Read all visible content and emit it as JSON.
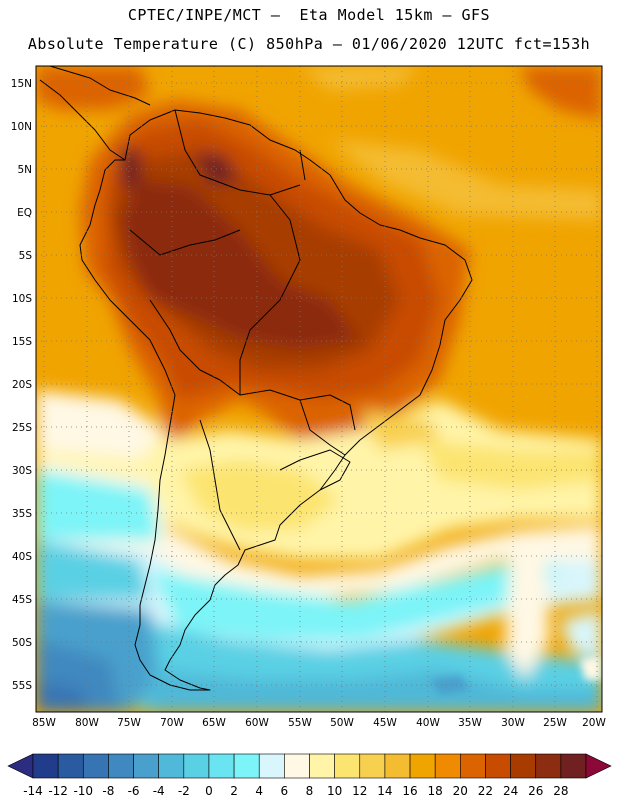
{
  "header": {
    "line1": "CPTEC/INPE/MCT –  Eta Model 15km – GFS",
    "line2": "Absolute Temperature (C) 850hPa – 01/06/2020 12UTC fct=153h"
  },
  "map": {
    "lat_labels": [
      "15N",
      "10N",
      "5N",
      "EQ",
      "5S",
      "10S",
      "15S",
      "20S",
      "25S",
      "30S",
      "35S",
      "40S",
      "45S",
      "50S",
      "55S"
    ],
    "lon_labels": [
      "85W",
      "80W",
      "75W",
      "70W",
      "65W",
      "60W",
      "55W",
      "50W",
      "45W",
      "40W",
      "35W",
      "30W",
      "25W",
      "20W"
    ]
  },
  "colorbar": {
    "labels": [
      "-14",
      "-12",
      "-10",
      "-8",
      "-6",
      "-4",
      "-2",
      "0",
      "2",
      "4",
      "6",
      "8",
      "10",
      "12",
      "14",
      "16",
      "18",
      "20",
      "22",
      "24",
      "26",
      "28"
    ],
    "colors": [
      "#223c8c",
      "#2a5aa0",
      "#3774b4",
      "#3f88c0",
      "#4aa0cc",
      "#50b8d8",
      "#5ad0e4",
      "#6ae4f0",
      "#7cf4f8",
      "#d8f6fc",
      "#fff8e4",
      "#fff4a8",
      "#fce470",
      "#f8d050",
      "#f4bc30",
      "#f0a400",
      "#f08a00",
      "#dc6400",
      "#c84c00",
      "#a83c00",
      "#8c2c10",
      "#702020"
    ],
    "low_color": "#2c2c80",
    "high_color": "#8c0838"
  }
}
